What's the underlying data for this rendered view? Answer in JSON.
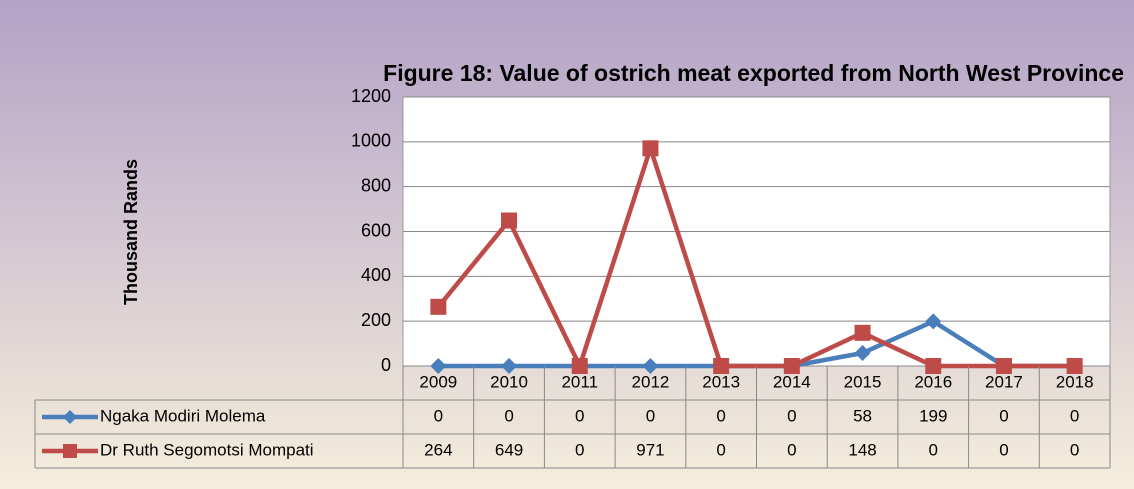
{
  "chart_data": {
    "type": "line",
    "title": "Figure 18: Value of ostrich meat exported from North West Province",
    "y_label": "Thousand Rands",
    "categories": [
      "2009",
      "2010",
      "2011",
      "2012",
      "2013",
      "2014",
      "2015",
      "2016",
      "2017",
      "2018"
    ],
    "series": [
      {
        "name": "Ngaka Modiri Molema",
        "color": "#4a7ebb",
        "marker": "diamond",
        "values": [
          0,
          0,
          0,
          0,
          0,
          0,
          58,
          199,
          0,
          0
        ]
      },
      {
        "name": "Dr Ruth Segomotsi Mompati",
        "color": "#be4b48",
        "marker": "square",
        "values": [
          264,
          649,
          0,
          971,
          0,
          0,
          148,
          0,
          0,
          0
        ]
      }
    ],
    "ylim": [
      0,
      1200
    ],
    "yticks": [
      0,
      200,
      400,
      600,
      800,
      1000,
      1200
    ],
    "grid": true,
    "data_table": true
  }
}
